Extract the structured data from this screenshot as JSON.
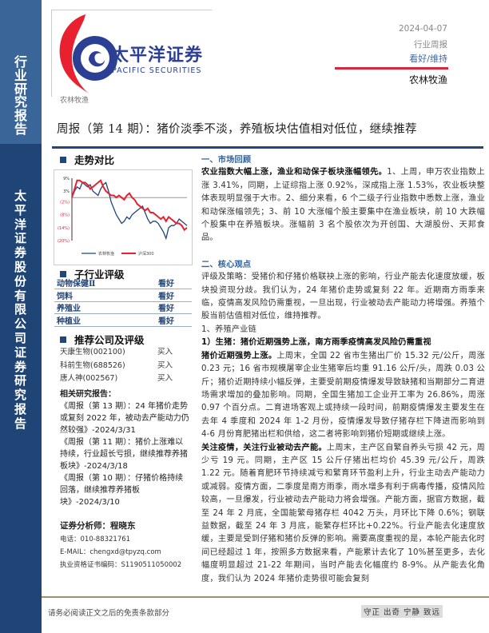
{
  "sidebar": {
    "top_text": "行业研究报告",
    "bottom_text": "太平洋证券股份有限公司证券研究报告"
  },
  "logo": {
    "cn": "太平洋证券",
    "en": "PACIFIC SECURITIES"
  },
  "header": {
    "date": "2024-04-07",
    "report_type": "行业周报",
    "rating": "看好/维持",
    "sector": "农林牧渔",
    "sector_small": "农林牧渔"
  },
  "title": "周报（第 14 期）：猪价淡季不淡，养殖板块估值相对低位，继续推荐",
  "colors": {
    "navy": "#1f4476",
    "accent_red": "#d9263a",
    "series_blue": "#21467a",
    "series_red": "#e8202f"
  },
  "trend": {
    "heading": "走势对比"
  },
  "chart_data": {
    "type": "line",
    "title": "",
    "ylim": [
      -20,
      9
    ],
    "yticks": [
      "9%",
      "3%",
      "(2%)",
      "(8%)",
      "(14%)",
      "(20%)"
    ],
    "ytick_values": [
      9,
      3,
      -2,
      -8,
      -14,
      -20
    ],
    "legend_position": "bottom",
    "series": [
      {
        "name": "农林牧渔",
        "color": "#21467a",
        "values": [
          0,
          3,
          5,
          4,
          7,
          6,
          5,
          6,
          3,
          2,
          1,
          4,
          6,
          7,
          3,
          -2,
          -5,
          -8,
          -10,
          -12,
          -11,
          -9,
          -10,
          -8,
          -7,
          -6,
          -5,
          -4,
          -7,
          -10,
          -12,
          -11,
          -11,
          -12,
          -14,
          -16,
          -19,
          -14,
          -13,
          -13,
          -12,
          -10,
          -11,
          -12,
          -13
        ]
      },
      {
        "name": "沪深300",
        "color": "#e8202f",
        "values": [
          0,
          4,
          8,
          8,
          7,
          7,
          6,
          4,
          5,
          6,
          7,
          8,
          5,
          3,
          2,
          1,
          1,
          0,
          1,
          0,
          -1,
          1,
          2,
          0,
          -1,
          -3,
          -4,
          -5,
          -6,
          -5,
          -7,
          -7,
          -8,
          -9,
          -10,
          -9,
          -11,
          -9,
          -10,
          -11,
          -12,
          -12,
          -13,
          -15,
          -14
        ]
      }
    ]
  },
  "sub_rating": {
    "heading": "子行业评级",
    "rows": [
      {
        "name": "动物保健Ⅱ",
        "rating": "看好"
      },
      {
        "name": "饲料",
        "rating": "看好"
      },
      {
        "name": "养殖业",
        "rating": "看好"
      },
      {
        "name": "种植业",
        "rating": "看好"
      }
    ]
  },
  "recommend": {
    "heading": "推荐公司及评级",
    "rows": [
      {
        "name": "天康生物(002100)",
        "rating": "买入"
      },
      {
        "name": "科前生物(688526)",
        "rating": "买入"
      },
      {
        "name": "唐人神(002567)",
        "rating": "买入"
      }
    ]
  },
  "related": {
    "heading": "相关研究报告：",
    "items": [
      "《周报（第 13 期）：24 年猪价走势或复刻 2022 年，被动去产能动力仍然较强》-2024/3/31",
      "《周报（第 11 期）：猪价上涨难以持续，行业超长亏损，继续推荐养猪板块》-2024/3/18",
      "《周报（第 10 期）：仔猪价格持续回落，继续推荐养猪板块》-2024/3/10"
    ]
  },
  "analyst": {
    "label": "证券分析师：程晓东",
    "phone": "电话：010-88321761",
    "email": "E-MAIL：chengxd@tpyzq.com",
    "cert": "执业资格证书编码：S1190511050002"
  },
  "body": [
    {
      "type": "h",
      "segs": [
        {
          "t": "一、市场回顾"
        }
      ]
    },
    {
      "type": "p",
      "segs": [
        {
          "b": true,
          "t": "农业指数大幅上涨，渔业和动保子板块涨幅领先。"
        },
        {
          "t": "1、上周，申万农业指数上涨 3.41%，同期，上证综指上涨 0.92%，深成指上涨 1.53%，农业板块整体表现明显强于大市。2、细分来看，6 个二级子行业指数中悉数上涨，渔业和动保涨幅领先；3、前 10 大涨幅个股主要集中在渔业板块，前 10 大跌幅个股集中在养殖板块。涨幅前 3 名个股依次为开创国、大湖股份、天邦食品。"
        }
      ]
    },
    {
      "type": "gap"
    },
    {
      "type": "h",
      "segs": [
        {
          "t": "二、核心观点"
        }
      ]
    },
    {
      "type": "p",
      "segs": [
        {
          "t": "评级及策略：受猪价和仔猪价格联袂上涨的影响，行业产能去化速度放缓，板块投资现分歧。我们认为，24 年猪价走势或复刻 22 年。近期南方雨季来临，疫情高发风险仍需重视，一旦出现，行业被动去产能动力将增强。养殖个股当前估值相对低位，维持推荐。"
        }
      ]
    },
    {
      "type": "p",
      "segs": [
        {
          "t": "1、养殖产业链"
        }
      ]
    },
    {
      "type": "p",
      "segs": [
        {
          "b": true,
          "t": "1）生猪：猪价近期强势上涨，南方雨季疫情高发风险仍需重视"
        }
      ]
    },
    {
      "type": "p",
      "segs": [
        {
          "b": true,
          "t": "猪价近期强势上涨。"
        },
        {
          "t": "上周末，全国 22 省市生猪出厂价 15.32 元/公斤，周涨 0.23 元；16 省市规模屠宰企业生猪宰后均重 91.16 公斤/头，周跌 0.03 公斤；猪价近期持续小幅反弹，主要受前期疫情爆发导致缺猪和当期部分二育进场需求增加的叠加影响。同期，全国生猪加工企业开工率为 26.86%，周涨 0.97 个百分点。二育进场客观上或持续一段时间，前期疫情爆发主要发生在去年 4 季度和 2024 年 1-2 月份，疫情爆发导致仔猪存栏下降进而影响到 4-6 月份育肥猪出栏和供给，这二者将影响到猪价短期或继续上涨。"
        }
      ]
    },
    {
      "type": "p",
      "segs": [
        {
          "b": true,
          "t": "关注疫情，关注行业被动去产能。"
        },
        {
          "t": "上周末，主产区自繁自养头亏损 42 元，周少亏 19 元。同期，主产区 15 公斤仔猪出栏均价 45.39 元/公斤，周跌 1.22 元。随着育肥环节持续减亏和繁育环节盈利上升，行业主动去产能动力或减弱。疫情方面，二季度是南方雨季，雨水增多有利于病毒传播，疫情风险较高，一旦爆发，行业被动去产能动力将会增强。产能方面，据官方数据，截至 24 年 2 月底，全国能繁母猪存栏 4042 万头，月环比下降 0.6%；钢联益数据，截至 24 年 3 月底，能繁存栏环比+0.22%。行业产能去化速度放缓，主要是受到仔猪和猪价反弹的影响。需要高度重视的是，本轮产能去化时间已经超过 1 年，按照多方数据来看，产能累计去化了 10%甚至更多，去化幅度明显超过 21-22 年期间，当时产能去化幅度约 8-9%。从产能去化角度，我们认为 2024 年猪价走势很可能会复刻"
        }
      ]
    }
  ],
  "footer": {
    "disclaimer": "请务必阅读正文之后的免责条款部分",
    "motto": "守正 出奇 宁静 致远"
  }
}
